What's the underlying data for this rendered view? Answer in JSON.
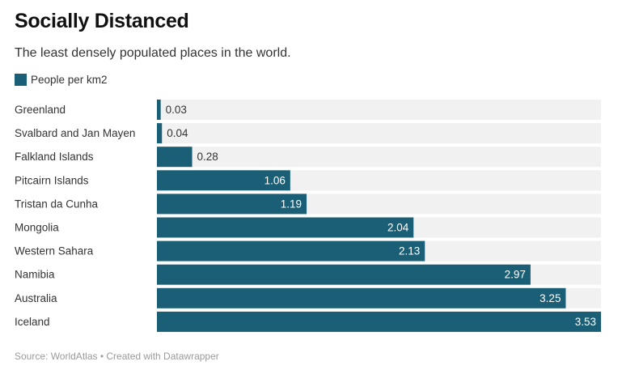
{
  "header": {
    "title": "Socially Distanced",
    "subtitle": "The least densely populated places in the world."
  },
  "footer": {
    "source": "Source: WorldAtlas • Created with Datawrapper"
  },
  "colors": {
    "bar": "#1b5f76",
    "track": "#f1f1f1",
    "label_inside": "#ffffff",
    "label_outside": "#333333"
  },
  "chart_data": {
    "type": "bar",
    "orientation": "horizontal",
    "title": "Socially Distanced",
    "subtitle": "The least densely populated places in the world.",
    "categories": [
      "Greenland",
      "Svalbard and Jan Mayen",
      "Falkland Islands",
      "Pitcairn Islands",
      "Tristan da Cunha",
      "Mongolia",
      "Western Sahara",
      "Namibia",
      "Australia",
      "Iceland"
    ],
    "series": [
      {
        "name": "People per km2",
        "values": [
          0.03,
          0.04,
          0.28,
          1.06,
          1.19,
          2.04,
          2.13,
          2.97,
          3.25,
          3.53
        ]
      }
    ],
    "value_labels": [
      "0.03",
      "0.04",
      "0.28",
      "1.06",
      "1.19",
      "2.04",
      "2.13",
      "2.97",
      "3.25",
      "3.53"
    ],
    "xlim": [
      0,
      3.53
    ],
    "grid": false,
    "legend_position": "top-left"
  }
}
